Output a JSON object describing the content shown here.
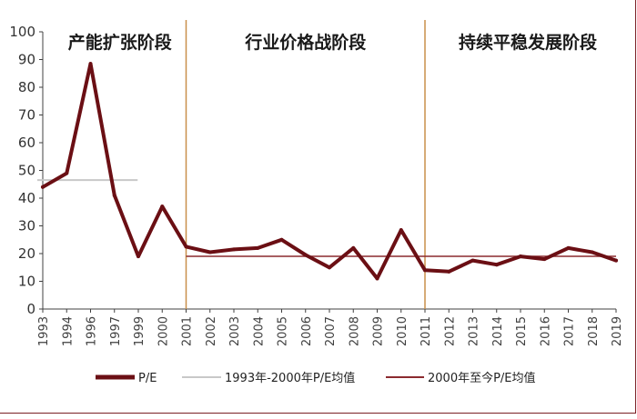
{
  "chart_data": {
    "type": "line",
    "title": "",
    "xlabel": "",
    "ylabel": "",
    "ylim": [
      0,
      100
    ],
    "yticks": [
      0,
      10,
      20,
      30,
      40,
      50,
      60,
      70,
      80,
      90,
      100
    ],
    "categories": [
      "1993",
      "1994",
      "1996",
      "1997",
      "1999",
      "2000",
      "2001",
      "2002",
      "2003",
      "2004",
      "2005",
      "2006",
      "2007",
      "2008",
      "2009",
      "2010",
      "2011",
      "2012",
      "2013",
      "2014",
      "2015",
      "2016",
      "2017",
      "2018",
      "2019"
    ],
    "series": [
      {
        "name": "P/E",
        "color": "#6b0f14",
        "values": [
          44,
          49,
          88.5,
          41,
          19,
          37,
          22.5,
          20.5,
          21.5,
          22,
          25,
          19.5,
          15,
          22,
          11,
          28.5,
          14,
          13.5,
          17.5,
          16,
          19,
          18,
          22,
          20.5,
          17.5
        ]
      }
    ],
    "reference_lines": [
      {
        "name": "1993年-2000年P/E均值",
        "value": 46.5,
        "from": "1993",
        "to": "2000",
        "color": "#c8c8c8"
      },
      {
        "name": "2000年至今P/E均值",
        "value": 19,
        "from": "2001",
        "to": "2019",
        "color": "#8b2a2f"
      }
    ],
    "phase_dividers": [
      "2001",
      "2011"
    ],
    "phase_divider_color": "#c98f4a",
    "phases": [
      "产能扩张阶段",
      "行业价格战阶段",
      "持续平稳发展阶段"
    ],
    "legend_position": "bottom",
    "grid": false
  }
}
